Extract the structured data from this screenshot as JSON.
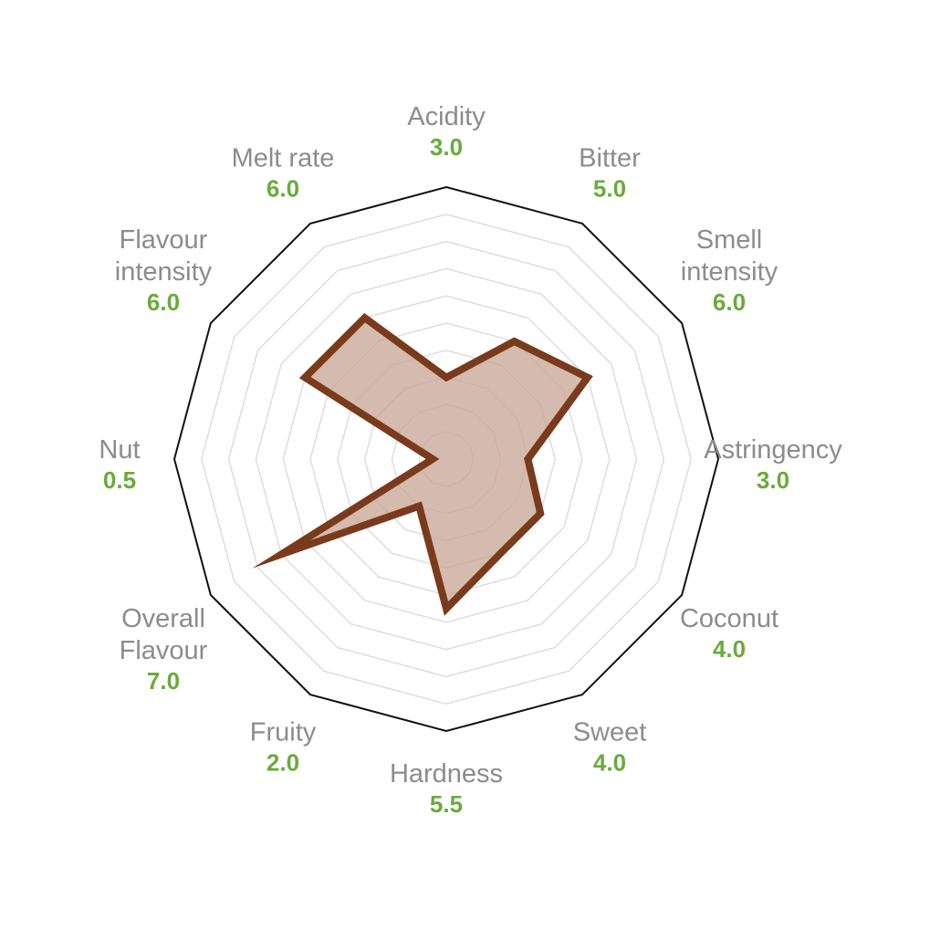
{
  "chart_data": {
    "type": "radar",
    "axes": [
      {
        "label": [
          "Acidity"
        ],
        "value_label": "3.0",
        "value": 3.0
      },
      {
        "label": [
          "Bitter"
        ],
        "value_label": "5.0",
        "value": 5.0
      },
      {
        "label": [
          "Smell",
          "intensity"
        ],
        "value_label": "6.0",
        "value": 6.0
      },
      {
        "label": [
          "Astringency"
        ],
        "value_label": "3.0",
        "value": 3.0
      },
      {
        "label": [
          "Coconut"
        ],
        "value_label": "4.0",
        "value": 4.0
      },
      {
        "label": [
          "Sweet"
        ],
        "value_label": "4.0",
        "value": 4.0
      },
      {
        "label": [
          "Hardness"
        ],
        "value_label": "5.5",
        "value": 5.5
      },
      {
        "label": [
          "Fruity"
        ],
        "value_label": "2.0",
        "value": 2.0
      },
      {
        "label": [
          "Overall",
          "Flavour"
        ],
        "value_label": "7.0",
        "value": 7.0
      },
      {
        "label": [
          "Nut"
        ],
        "value_label": "0.5",
        "value": 0.5
      },
      {
        "label": [
          "Flavour",
          "intensity"
        ],
        "value_label": "6.0",
        "value": 6.0
      },
      {
        "label": [
          "Melt rate"
        ],
        "value_label": "6.0",
        "value": 6.0
      }
    ],
    "rlim": [
      0,
      10
    ],
    "grid_levels": [
      1,
      2,
      3,
      4,
      5,
      6,
      7,
      8,
      9,
      10
    ],
    "grid": true,
    "colors": {
      "line": "#7a3a1c",
      "fill": "#c9a797",
      "outer": "#111111",
      "grid": "#dddddd",
      "label": "#8c8c8c",
      "value": "#6aab3c"
    }
  }
}
